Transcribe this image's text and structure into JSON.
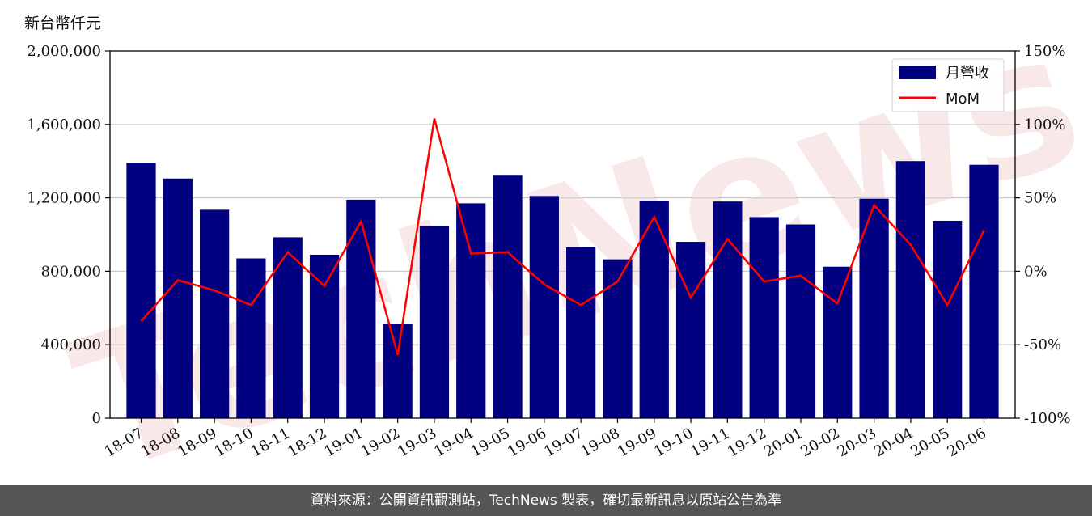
{
  "y_unit_label": "新台幣仟元",
  "footer_text": "資料來源：公開資訊觀測站，TechNews 製表，確切最新訊息以原站公告為準",
  "watermark_text": "TechNews",
  "chart_data": {
    "type": "bar",
    "categories": [
      "18-07",
      "18-08",
      "18-09",
      "18-10",
      "18-11",
      "18-12",
      "19-01",
      "19-02",
      "19-03",
      "19-04",
      "19-05",
      "19-06",
      "19-07",
      "19-08",
      "19-09",
      "19-10",
      "19-11",
      "19-12",
      "20-01",
      "20-02",
      "20-03",
      "20-04",
      "20-05",
      "20-06"
    ],
    "series": [
      {
        "name": "月營收",
        "type": "bar",
        "axis": "left",
        "color": "#000080",
        "values": [
          1390000,
          1305000,
          1135000,
          870000,
          985000,
          890000,
          1190000,
          515000,
          1045000,
          1170000,
          1325000,
          1210000,
          930000,
          865000,
          1185000,
          960000,
          1180000,
          1095000,
          1055000,
          825000,
          1195000,
          1400000,
          1075000,
          1380000
        ]
      },
      {
        "name": "MoM",
        "type": "line",
        "axis": "right",
        "color": "#ff0000",
        "values": [
          -34,
          -6,
          -13,
          -23,
          13,
          -10,
          34,
          -57,
          104,
          12,
          13,
          -9,
          -23,
          -7,
          37,
          -18,
          22,
          -7,
          -3,
          -22,
          45,
          18,
          -23,
          28
        ]
      }
    ],
    "y_left": {
      "lim": [
        0,
        2000000
      ],
      "ticks": [
        0,
        400000,
        800000,
        1200000,
        1600000,
        2000000
      ],
      "tick_labels": [
        "0",
        "400,000",
        "800,000",
        "1,200,000",
        "1,600,000",
        "2,000,000"
      ]
    },
    "y_right": {
      "lim": [
        -100,
        150
      ],
      "ticks": [
        -100,
        -50,
        0,
        50,
        100,
        150
      ],
      "tick_labels": [
        "-100%",
        "-50%",
        "0%",
        "50%",
        "100%",
        "150%"
      ]
    },
    "grid": "horizontal",
    "legend_position": "top-right"
  }
}
